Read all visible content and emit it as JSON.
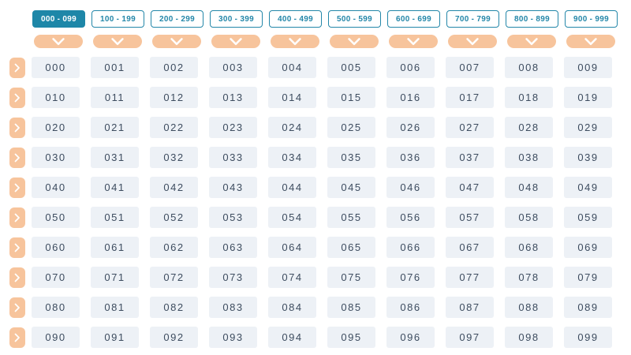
{
  "colors": {
    "accent_teal": "#1E87A8",
    "tab_border_text": "#2487A9",
    "peach": "#F7C49C",
    "cell_background": "#EDF1F6",
    "cell_text": "#3D4C5F",
    "page_background": "#FFFFFF",
    "chevron": "#FFFFFF"
  },
  "header": {
    "tabs": [
      {
        "label": "000 - 099",
        "active": true
      },
      {
        "label": "100 - 199",
        "active": false
      },
      {
        "label": "200 - 299",
        "active": false
      },
      {
        "label": "300 - 399",
        "active": false
      },
      {
        "label": "400 - 499",
        "active": false
      },
      {
        "label": "500 - 599",
        "active": false
      },
      {
        "label": "600 - 699",
        "active": false
      },
      {
        "label": "700 - 799",
        "active": false
      },
      {
        "label": "800 - 899",
        "active": false
      },
      {
        "label": "900 - 999",
        "active": false
      }
    ],
    "column_dropdowns": {
      "count": 10,
      "icon": "chevron-down-icon"
    }
  },
  "grid": {
    "row_expand_icon": "chevron-right-icon",
    "rows": [
      {
        "cells": [
          "000",
          "001",
          "002",
          "003",
          "004",
          "005",
          "006",
          "007",
          "008",
          "009"
        ]
      },
      {
        "cells": [
          "010",
          "011",
          "012",
          "013",
          "014",
          "015",
          "016",
          "017",
          "018",
          "019"
        ]
      },
      {
        "cells": [
          "020",
          "021",
          "022",
          "023",
          "024",
          "025",
          "026",
          "027",
          "028",
          "029"
        ]
      },
      {
        "cells": [
          "030",
          "031",
          "032",
          "033",
          "034",
          "035",
          "036",
          "037",
          "038",
          "039"
        ]
      },
      {
        "cells": [
          "040",
          "041",
          "042",
          "043",
          "044",
          "045",
          "046",
          "047",
          "048",
          "049"
        ]
      },
      {
        "cells": [
          "050",
          "051",
          "052",
          "053",
          "054",
          "055",
          "056",
          "057",
          "058",
          "059"
        ]
      },
      {
        "cells": [
          "060",
          "061",
          "062",
          "063",
          "064",
          "065",
          "066",
          "067",
          "068",
          "069"
        ]
      },
      {
        "cells": [
          "070",
          "071",
          "072",
          "073",
          "074",
          "075",
          "076",
          "077",
          "078",
          "079"
        ]
      },
      {
        "cells": [
          "080",
          "081",
          "082",
          "083",
          "084",
          "085",
          "086",
          "087",
          "088",
          "089"
        ]
      },
      {
        "cells": [
          "090",
          "091",
          "092",
          "093",
          "094",
          "095",
          "096",
          "097",
          "098",
          "099"
        ]
      }
    ]
  }
}
